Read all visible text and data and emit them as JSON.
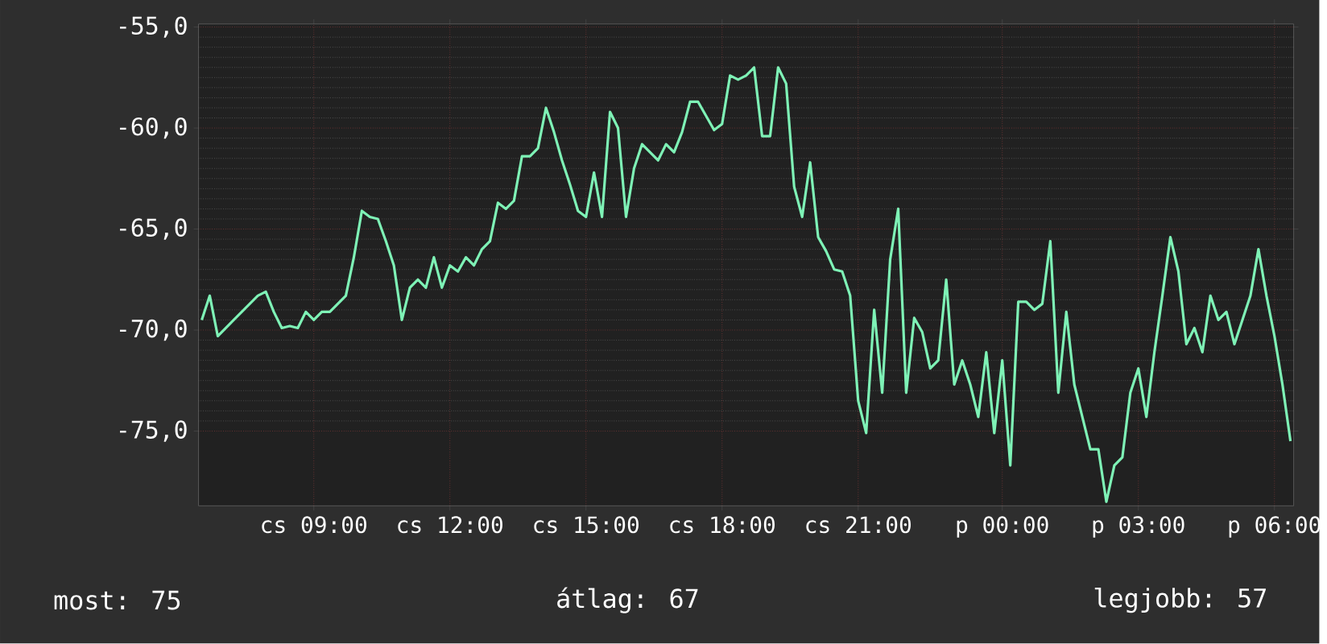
{
  "chart_data": {
    "type": "line",
    "color": "#7ef2b6",
    "categories": [
      null,
      null,
      null,
      null,
      null,
      null,
      null,
      null,
      null,
      null,
      null,
      null,
      null,
      null,
      "cs 09:00",
      null,
      null,
      null,
      null,
      null,
      null,
      null,
      null,
      null,
      null,
      null,
      null,
      null,
      null,
      null,
      null,
      "cs 12:00",
      null,
      null,
      null,
      null,
      null,
      null,
      null,
      null,
      null,
      null,
      null,
      null,
      null,
      null,
      null,
      null,
      "cs 15:00",
      null,
      null,
      null,
      null,
      null,
      null,
      null,
      null,
      null,
      null,
      null,
      null,
      null,
      null,
      null,
      null,
      "cs 18:00",
      null,
      null,
      null,
      null,
      null,
      null,
      null,
      null,
      null,
      null,
      null,
      null,
      null,
      null,
      null,
      null,
      "cs 21:00",
      null,
      null,
      null,
      null,
      null,
      null,
      null,
      null,
      null,
      null,
      null,
      null,
      null,
      null,
      null,
      null,
      null,
      "p 00:00",
      null,
      null,
      null,
      null,
      null,
      null,
      null,
      null,
      null,
      null,
      null,
      null,
      null,
      null,
      null,
      null,
      "p 03:00",
      null,
      null,
      null,
      null,
      null,
      null,
      null,
      null,
      null,
      null,
      null,
      null,
      null,
      null,
      null,
      null,
      "p 06:00",
      null,
      null
    ],
    "values": [
      -69.5,
      -68.3,
      -70.3,
      -69.9,
      -69.5,
      -69.1,
      -68.7,
      -68.3,
      -68.1,
      -69.1,
      -69.9,
      -69.8,
      -69.9,
      -69.1,
      -69.5,
      -69.1,
      -69.1,
      -68.7,
      -68.3,
      -66.4,
      -64.1,
      -64.4,
      -64.5,
      -65.6,
      -66.8,
      -69.5,
      -67.9,
      -67.5,
      -67.9,
      -66.4,
      -67.9,
      -66.8,
      -67.1,
      -66.4,
      -66.8,
      -66.0,
      -65.6,
      -63.7,
      -64.0,
      -63.6,
      -61.4,
      -61.4,
      -61.0,
      -59.0,
      -60.2,
      -61.6,
      -62.8,
      -64.1,
      -64.4,
      -62.2,
      -64.4,
      -59.2,
      -60.0,
      -64.4,
      -62.0,
      -60.8,
      -61.2,
      -61.6,
      -60.8,
      -61.2,
      -60.2,
      -58.7,
      -58.7,
      -59.4,
      -60.1,
      -59.8,
      -57.4,
      -57.6,
      -57.4,
      -57.0,
      -60.4,
      -60.4,
      -57.0,
      -57.8,
      -62.9,
      -64.4,
      -61.7,
      -65.4,
      -66.1,
      -67.0,
      -67.1,
      -68.3,
      -73.5,
      -75.1,
      -69.0,
      -73.1,
      -66.5,
      -64.0,
      -73.1,
      -69.4,
      -70.1,
      -71.9,
      -71.5,
      -67.5,
      -72.7,
      -71.5,
      -72.7,
      -74.3,
      -71.1,
      -75.1,
      -71.5,
      -76.7,
      -68.6,
      -68.6,
      -69.0,
      -68.7,
      -65.6,
      -73.1,
      -69.1,
      -72.7,
      -74.3,
      -75.9,
      -75.9,
      -78.5,
      -76.7,
      -76.3,
      -73.1,
      -71.9,
      -74.3,
      -71.1,
      -68.3,
      -65.4,
      -67.1,
      -70.7,
      -69.9,
      -71.1,
      -68.3,
      -69.5,
      -69.1,
      -70.7,
      -69.5,
      -68.3,
      -66.0,
      -68.3,
      -70.3,
      -72.7,
      -75.5
    ],
    "ylim": [
      -78.7,
      -54.85
    ],
    "yticks": [
      {
        "value": -55,
        "label": "-55,0"
      },
      {
        "value": -60,
        "label": "-60,0"
      },
      {
        "value": -65,
        "label": "-65,0"
      },
      {
        "value": -70,
        "label": "-70,0"
      },
      {
        "value": -75,
        "label": "-75,0"
      }
    ],
    "grid": true,
    "marker": "none",
    "line_style": "solid",
    "annotations": [
      "most: 75",
      "átlag: 67",
      "legjobb: 57"
    ]
  }
}
